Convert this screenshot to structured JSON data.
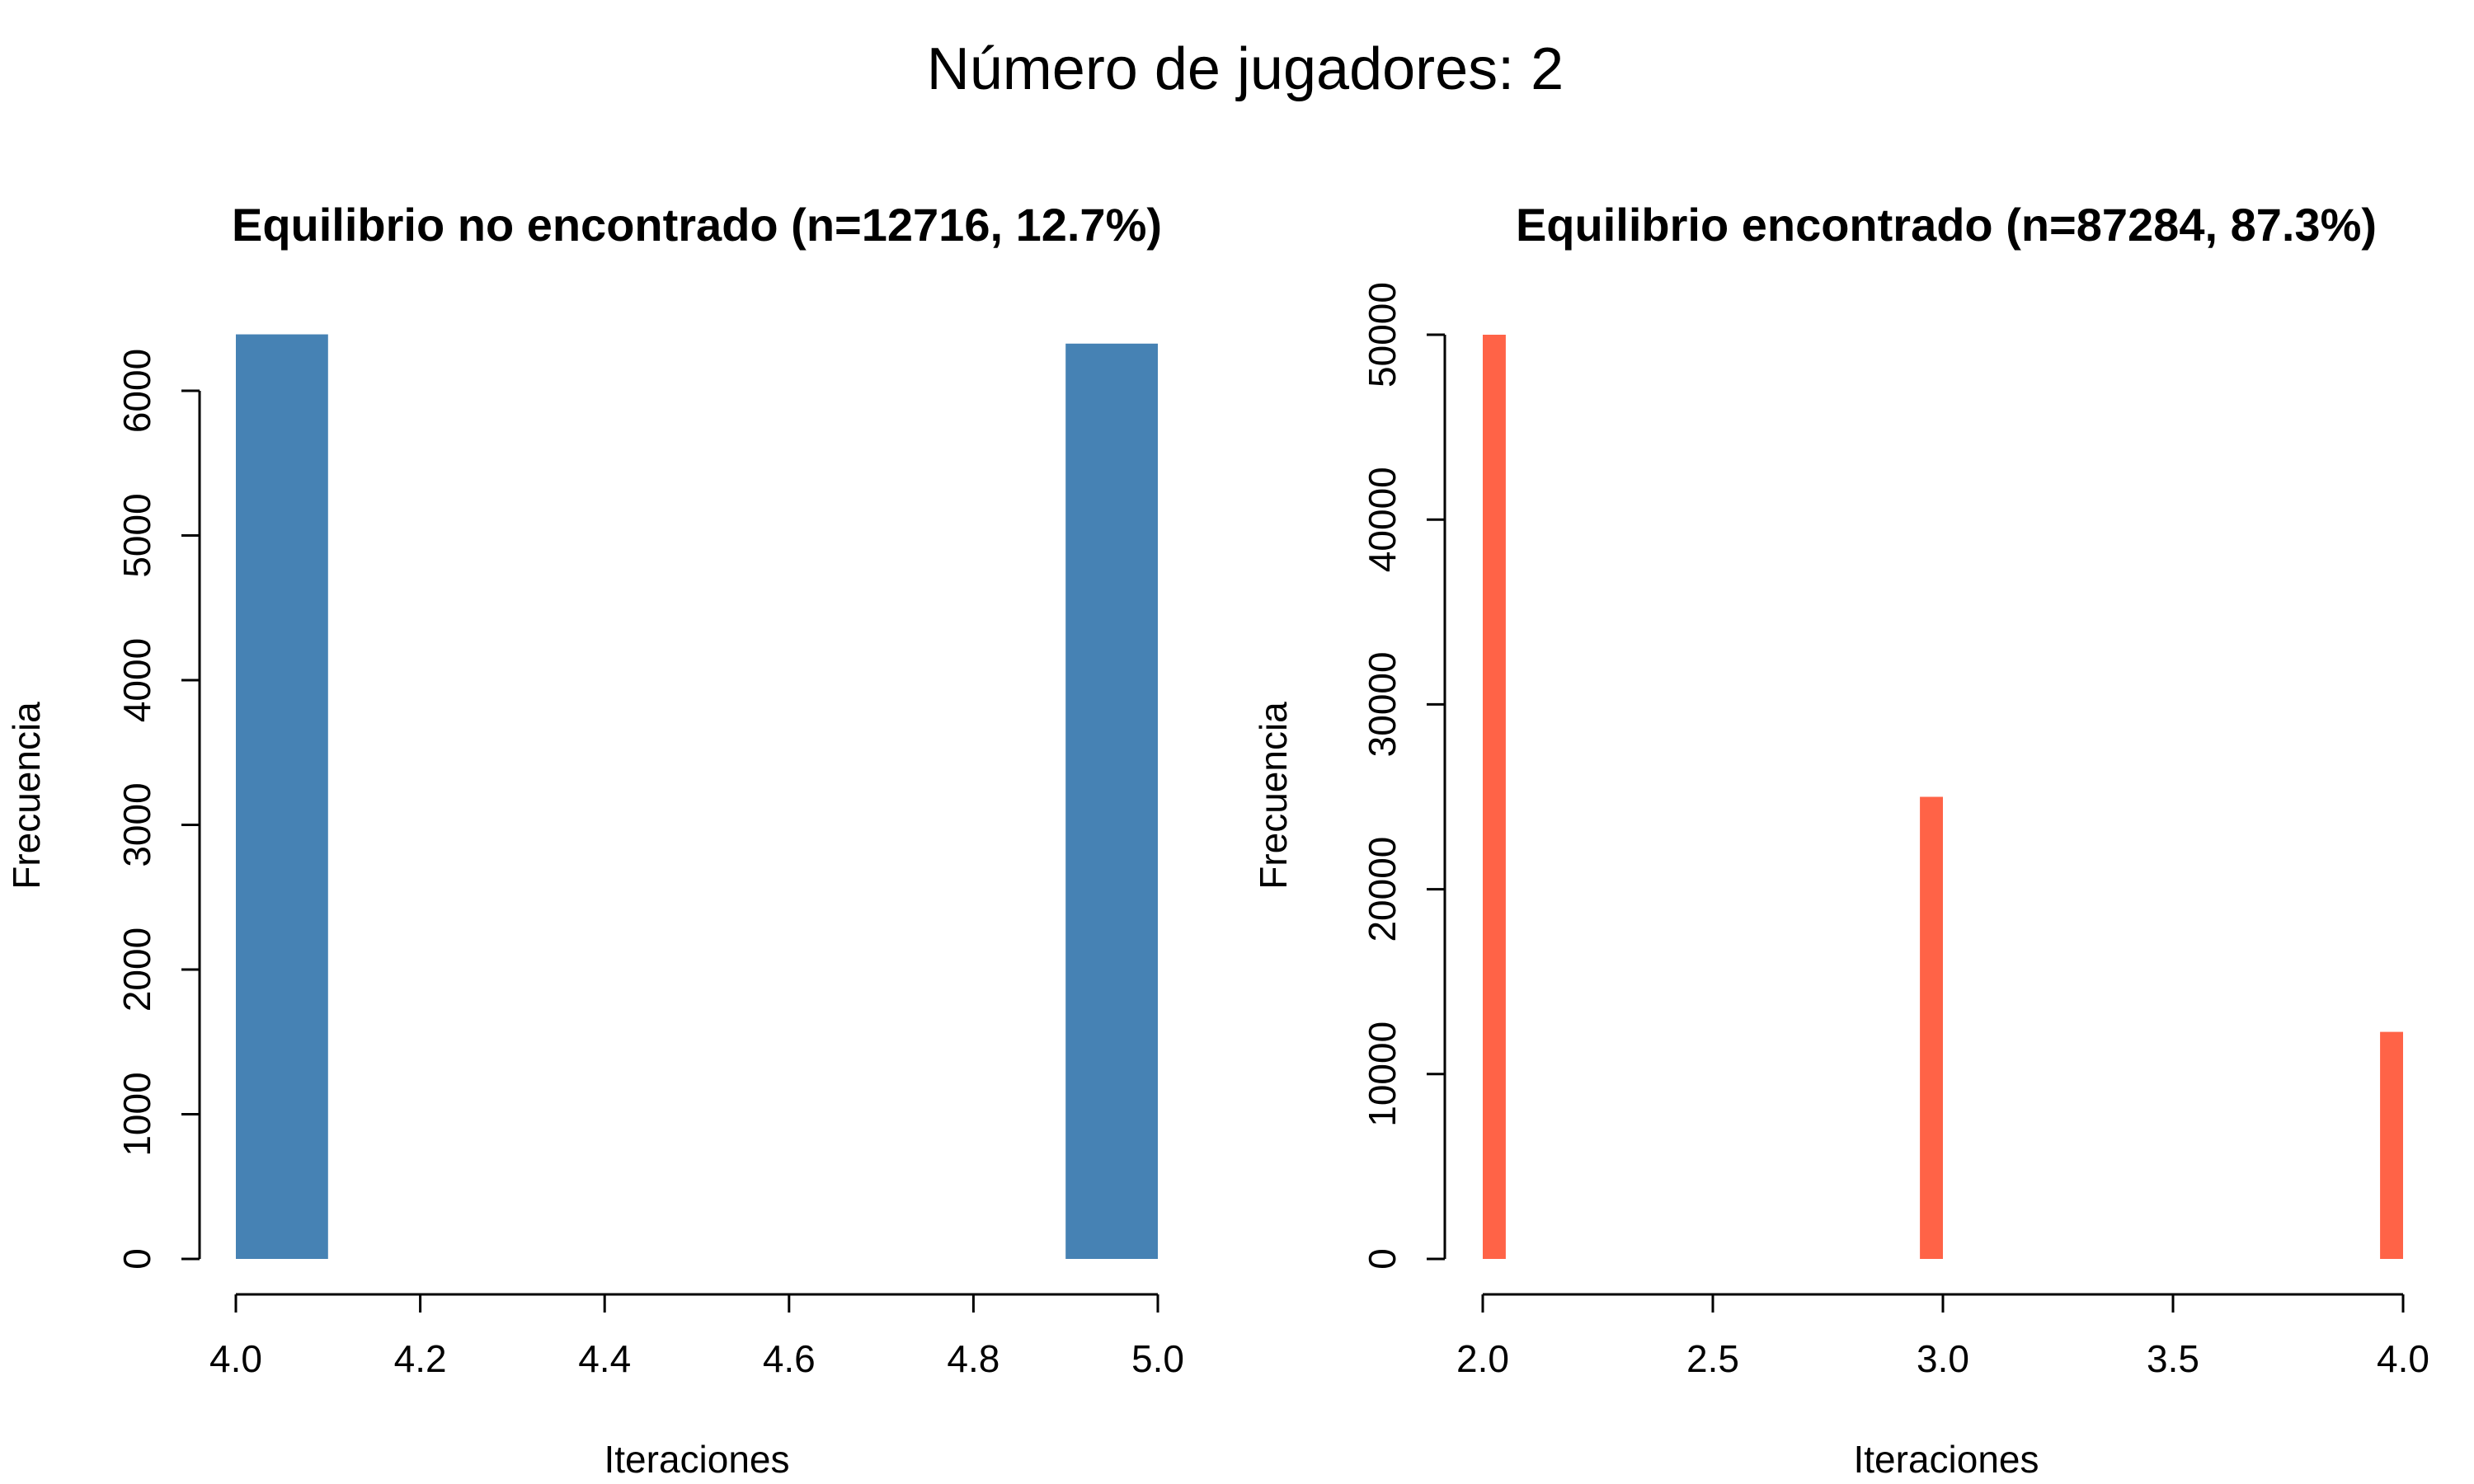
{
  "suptitle": "Número de jugadores: 2",
  "chart_data": [
    {
      "type": "bar",
      "title": "Equilibrio no encontrado (n=12716, 12.7%)",
      "xlabel": "Iteraciones",
      "ylabel": "Frecuencia",
      "xlim": [
        4.0,
        5.0
      ],
      "ylim": [
        0,
        6000
      ],
      "xticks": [
        "4.0",
        "4.2",
        "4.4",
        "4.6",
        "4.8",
        "5.0"
      ],
      "yticks": [
        "0",
        "1000",
        "2000",
        "3000",
        "4000",
        "5000",
        "6000"
      ],
      "bins": [
        {
          "x0": 4.0,
          "x1": 4.1,
          "value": 6390
        },
        {
          "x0": 4.9,
          "x1": 5.0,
          "value": 6326
        }
      ],
      "color": "#4682B4",
      "grid": false
    },
    {
      "type": "bar",
      "title": "Equilibrio encontrado (n=87284, 87.3%)",
      "xlabel": "Iteraciones",
      "ylabel": "Frecuencia",
      "xlim": [
        2.0,
        4.0
      ],
      "ylim": [
        0,
        50000
      ],
      "xticks": [
        "2.0",
        "2.5",
        "3.0",
        "3.5",
        "4.0"
      ],
      "yticks": [
        "0",
        "10000",
        "20000",
        "30000",
        "40000",
        "50000"
      ],
      "bins": [
        {
          "x0": 2.0,
          "x1": 2.05,
          "value": 50000
        },
        {
          "x0": 2.95,
          "x1": 3.0,
          "value": 25000
        },
        {
          "x0": 3.95,
          "x1": 4.0,
          "value": 12284
        }
      ],
      "color": "#FF6347",
      "grid": false
    }
  ]
}
